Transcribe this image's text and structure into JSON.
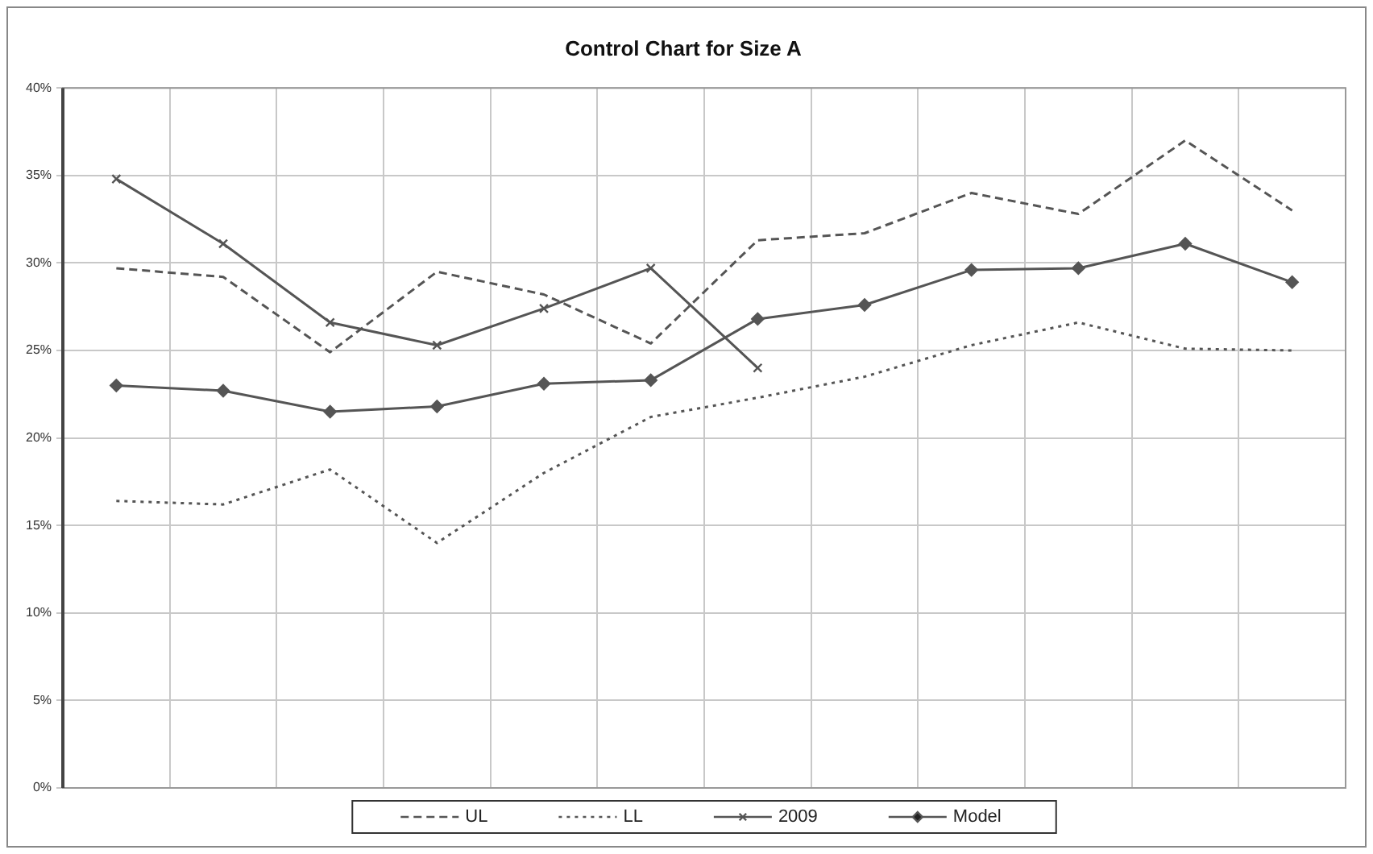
{
  "chart_data": {
    "type": "line",
    "title": "Control Chart for Size A",
    "categories": [
      null,
      null,
      null,
      null,
      null,
      null,
      null,
      null,
      null,
      null,
      null,
      null
    ],
    "series": [
      {
        "name": "UL",
        "color": "#555555",
        "line_style": "dashed",
        "marker": "none",
        "values": [
          29.7,
          29.2,
          24.9,
          29.5,
          28.2,
          25.4,
          31.3,
          31.7,
          34.0,
          32.8,
          37.0,
          33.0
        ]
      },
      {
        "name": "LL",
        "color": "#555555",
        "line_style": "dotted",
        "marker": "none",
        "values": [
          16.4,
          16.2,
          18.2,
          14.0,
          18.0,
          21.2,
          22.3,
          23.5,
          25.3,
          26.6,
          25.1,
          25.0
        ]
      },
      {
        "name": "2009",
        "color": "#555555",
        "line_style": "solid",
        "marker": "cross",
        "values": [
          34.8,
          31.1,
          26.6,
          25.3,
          27.4,
          29.7,
          24.0,
          null,
          null,
          null,
          null,
          null
        ]
      },
      {
        "name": "Model",
        "color": "#555555",
        "line_style": "solid",
        "marker": "diamond",
        "values": [
          23.0,
          22.7,
          21.5,
          21.8,
          23.1,
          23.3,
          26.8,
          27.6,
          29.6,
          29.7,
          31.1,
          28.9
        ]
      }
    ],
    "ylim": [
      0,
      40
    ],
    "yticks": [
      {
        "value": 0,
        "label": "0%"
      },
      {
        "value": 5,
        "label": "5%"
      },
      {
        "value": 10,
        "label": "10%"
      },
      {
        "value": 15,
        "label": "15%"
      },
      {
        "value": 20,
        "label": "20%"
      },
      {
        "value": 25,
        "label": "25%"
      },
      {
        "value": 30,
        "label": "30%"
      },
      {
        "value": 35,
        "label": "35%"
      },
      {
        "value": 40,
        "label": "40%"
      }
    ],
    "grid": true,
    "legend": "bottom",
    "tick_labels": "y"
  }
}
